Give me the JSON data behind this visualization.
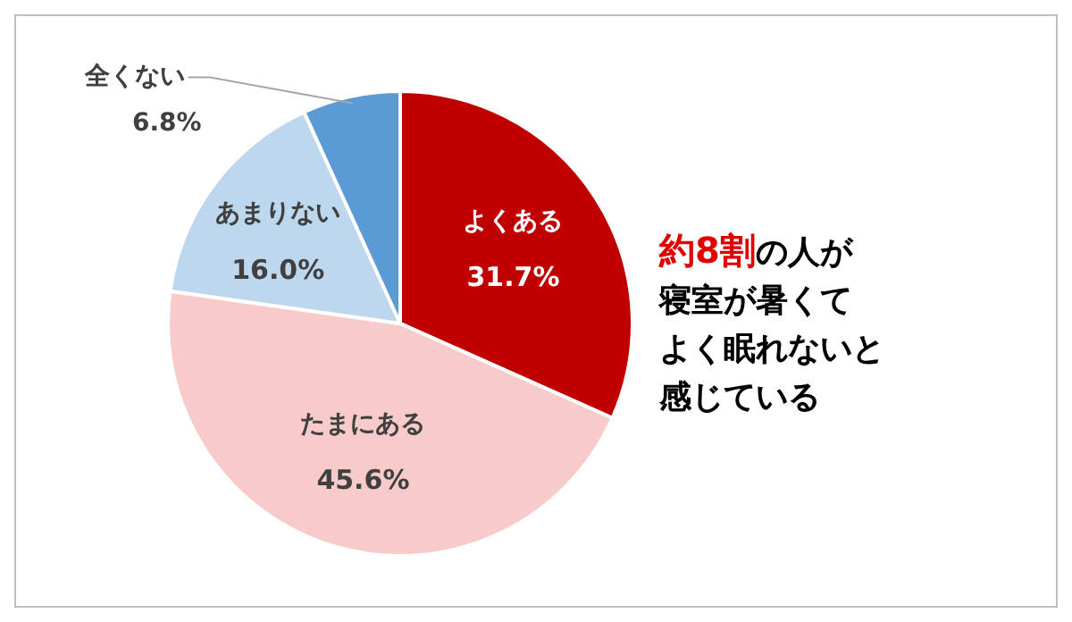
{
  "chart_data": {
    "type": "pie",
    "categories": [
      "よくある",
      "たまにある",
      "あまりない",
      "全くない"
    ],
    "values": [
      31.7,
      45.6,
      16.0,
      6.8
    ],
    "value_labels": [
      "31.7%",
      "45.6%",
      "16.0%",
      "6.8%"
    ],
    "colors": [
      "#c00000",
      "#f8cbcb",
      "#bdd7ee",
      "#5b9bd5"
    ],
    "annotations": [
      "約8割",
      "の人が",
      "寝室が暑くて",
      "よく眠れないと",
      "感じている"
    ],
    "legend": false
  }
}
